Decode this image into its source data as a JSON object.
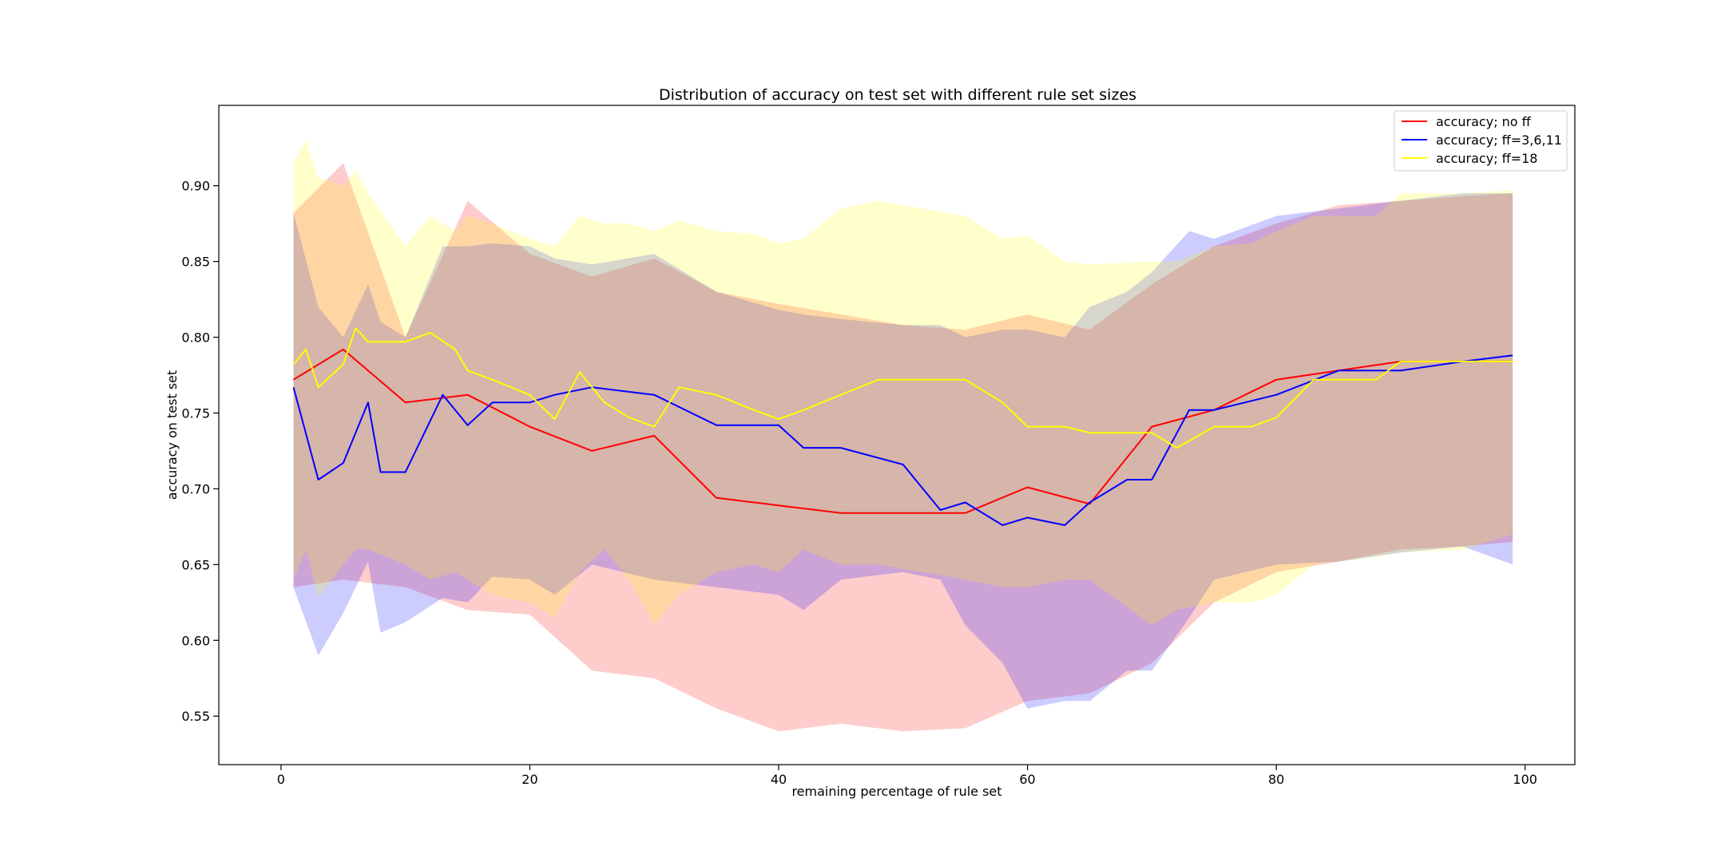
{
  "chart_data": {
    "type": "line",
    "title": "Distribution of accuracy on test set with different rule set sizes",
    "xlabel": "remaining percentage of rule set",
    "ylabel": "accuracy on test set",
    "xlim": [
      -5,
      104
    ],
    "ylim": [
      0.518,
      0.953
    ],
    "xticks": [
      0,
      20,
      40,
      60,
      80,
      100
    ],
    "yticks": [
      0.55,
      0.6,
      0.65,
      0.7,
      0.75,
      0.8,
      0.85,
      0.9
    ],
    "xtick_labels": [
      "0",
      "20",
      "40",
      "60",
      "80",
      "100"
    ],
    "ytick_labels": [
      "0.55",
      "0.60",
      "0.65",
      "0.70",
      "0.75",
      "0.80",
      "0.85",
      "0.90"
    ],
    "grid": false,
    "legend_position": "top-right",
    "series": [
      {
        "name": "accuracy; no ff",
        "color": "#ff0000",
        "band_color": "#ff0000",
        "band_opacity": 0.2,
        "x": [
          1,
          5,
          10,
          15,
          20,
          25,
          30,
          35,
          40,
          45,
          50,
          55,
          60,
          65,
          70,
          75,
          80,
          85,
          90,
          95,
          99
        ],
        "y": [
          0.772,
          0.792,
          0.757,
          0.762,
          0.741,
          0.725,
          0.735,
          0.694,
          0.689,
          0.684,
          0.684,
          0.684,
          0.701,
          0.69,
          0.741,
          0.752,
          0.772,
          0.778,
          0.784,
          0.784,
          0.784
        ],
        "upper": [
          0.882,
          0.915,
          0.8,
          0.89,
          0.855,
          0.84,
          0.852,
          0.83,
          0.822,
          0.815,
          0.808,
          0.805,
          0.815,
          0.805,
          0.835,
          0.86,
          0.875,
          0.887,
          0.89,
          0.893,
          0.895
        ],
        "lower": [
          0.635,
          0.64,
          0.635,
          0.62,
          0.617,
          0.58,
          0.575,
          0.555,
          0.54,
          0.545,
          0.54,
          0.542,
          0.56,
          0.565,
          0.585,
          0.625,
          0.645,
          0.652,
          0.66,
          0.662,
          0.665
        ]
      },
      {
        "name": "accuracy; ff=3,6,11",
        "color": "#0000ff",
        "band_color": "#0000ff",
        "band_opacity": 0.2,
        "x": [
          1,
          3,
          5,
          7,
          8,
          10,
          13,
          15,
          17,
          20,
          22,
          25,
          30,
          35,
          40,
          42,
          45,
          50,
          53,
          55,
          58,
          60,
          63,
          65,
          68,
          70,
          73,
          75,
          80,
          85,
          90,
          95,
          99
        ],
        "y": [
          0.767,
          0.706,
          0.717,
          0.757,
          0.711,
          0.711,
          0.762,
          0.742,
          0.757,
          0.757,
          0.762,
          0.767,
          0.762,
          0.742,
          0.742,
          0.727,
          0.727,
          0.716,
          0.686,
          0.691,
          0.676,
          0.681,
          0.676,
          0.691,
          0.706,
          0.706,
          0.752,
          0.752,
          0.762,
          0.778,
          0.778,
          0.784,
          0.788
        ],
        "upper": [
          0.882,
          0.82,
          0.8,
          0.835,
          0.81,
          0.8,
          0.86,
          0.86,
          0.862,
          0.86,
          0.852,
          0.848,
          0.855,
          0.83,
          0.818,
          0.815,
          0.812,
          0.808,
          0.808,
          0.8,
          0.805,
          0.805,
          0.8,
          0.82,
          0.83,
          0.843,
          0.87,
          0.865,
          0.88,
          0.885,
          0.89,
          0.895,
          0.895
        ],
        "lower": [
          0.635,
          0.59,
          0.618,
          0.652,
          0.605,
          0.612,
          0.628,
          0.625,
          0.642,
          0.64,
          0.63,
          0.65,
          0.64,
          0.635,
          0.63,
          0.62,
          0.64,
          0.645,
          0.64,
          0.61,
          0.585,
          0.555,
          0.56,
          0.56,
          0.58,
          0.58,
          0.615,
          0.64,
          0.65,
          0.652,
          0.658,
          0.662,
          0.65
        ]
      },
      {
        "name": "accuracy; ff=18",
        "color": "#ffff00",
        "band_color": "#ffff00",
        "band_opacity": 0.2,
        "x": [
          1,
          2,
          3,
          5,
          6,
          7,
          10,
          12,
          14,
          15,
          17,
          20,
          22,
          24,
          26,
          28,
          30,
          32,
          35,
          38,
          40,
          42,
          45,
          48,
          55,
          58,
          60,
          63,
          65,
          70,
          72,
          75,
          78,
          80,
          83,
          88,
          90,
          95,
          99
        ],
        "y": [
          0.782,
          0.792,
          0.767,
          0.782,
          0.806,
          0.797,
          0.797,
          0.803,
          0.792,
          0.778,
          0.772,
          0.762,
          0.746,
          0.777,
          0.757,
          0.747,
          0.741,
          0.767,
          0.762,
          0.752,
          0.746,
          0.752,
          0.762,
          0.772,
          0.772,
          0.757,
          0.741,
          0.741,
          0.737,
          0.737,
          0.727,
          0.741,
          0.741,
          0.747,
          0.772,
          0.772,
          0.784,
          0.784,
          0.784
        ],
        "upper": [
          0.915,
          0.93,
          0.905,
          0.9,
          0.91,
          0.895,
          0.86,
          0.88,
          0.87,
          0.88,
          0.875,
          0.865,
          0.86,
          0.88,
          0.875,
          0.875,
          0.87,
          0.877,
          0.87,
          0.868,
          0.862,
          0.865,
          0.885,
          0.89,
          0.88,
          0.865,
          0.867,
          0.85,
          0.848,
          0.85,
          0.85,
          0.86,
          0.862,
          0.87,
          0.88,
          0.88,
          0.895,
          0.895,
          0.897
        ],
        "lower": [
          0.64,
          0.66,
          0.628,
          0.65,
          0.66,
          0.66,
          0.65,
          0.64,
          0.645,
          0.64,
          0.63,
          0.625,
          0.615,
          0.645,
          0.66,
          0.64,
          0.61,
          0.63,
          0.645,
          0.65,
          0.645,
          0.66,
          0.65,
          0.65,
          0.64,
          0.635,
          0.635,
          0.64,
          0.64,
          0.61,
          0.62,
          0.625,
          0.625,
          0.63,
          0.65,
          0.655,
          0.658,
          0.66,
          0.67
        ]
      }
    ]
  }
}
